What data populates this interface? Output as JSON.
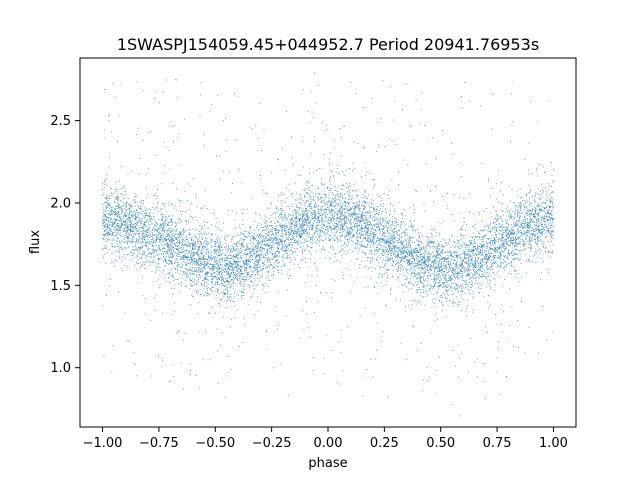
{
  "chart_data": {
    "type": "scatter",
    "title": "1SWASPJ154059.45+044952.7 Period 20941.76953s",
    "xlabel": "phase",
    "ylabel": "flux",
    "xlim": [
      -1.1,
      1.1
    ],
    "ylim": [
      0.64,
      2.88
    ],
    "x_ticks": [
      -1.0,
      -0.75,
      -0.5,
      -0.25,
      0.0,
      0.25,
      0.5,
      0.75,
      1.0
    ],
    "x_tick_labels": [
      "−1.00",
      "−0.75",
      "−0.50",
      "−0.25",
      "0.00",
      "0.25",
      "0.50",
      "0.75",
      "1.00"
    ],
    "y_ticks": [
      1.0,
      1.5,
      2.0,
      2.5
    ],
    "y_tick_labels": [
      "1.0",
      "1.5",
      "2.0",
      "2.5"
    ],
    "grid": false,
    "marker_color": "#1f77b4",
    "series": [
      {
        "x": [
          -1.0,
          -0.9,
          -0.8,
          -0.75,
          -0.7,
          -0.6,
          -0.5,
          -0.45,
          -0.4,
          -0.3,
          -0.2,
          -0.1,
          0.0,
          0.05,
          0.1,
          0.2,
          0.3,
          0.4,
          0.5,
          0.55,
          0.6,
          0.7,
          0.8,
          0.9,
          1.0
        ],
        "y": [
          1.9,
          1.87,
          1.82,
          1.79,
          1.75,
          1.68,
          1.62,
          1.61,
          1.62,
          1.7,
          1.8,
          1.88,
          1.92,
          1.92,
          1.9,
          1.83,
          1.74,
          1.65,
          1.6,
          1.59,
          1.61,
          1.7,
          1.8,
          1.87,
          1.91
        ]
      }
    ]
  }
}
